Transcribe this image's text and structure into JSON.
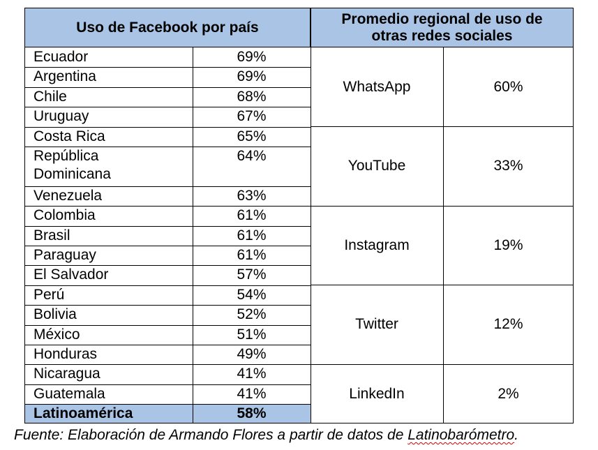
{
  "header": {
    "left": "Uso de Facebook por país",
    "right_line1": "Promedio regional de uso de",
    "right_line2": "otras redes sociales"
  },
  "countries": [
    {
      "name": "Ecuador",
      "pct": "69%"
    },
    {
      "name": "Argentina",
      "pct": "69%"
    },
    {
      "name": "Chile",
      "pct": "68%"
    },
    {
      "name": "Uruguay",
      "pct": "67%"
    },
    {
      "name": "Costa Rica",
      "pct": "65%"
    },
    {
      "name": "República",
      "name2": "Dominicana",
      "pct": "64%"
    },
    {
      "name": "Venezuela",
      "pct": "63%"
    },
    {
      "name": "Colombia",
      "pct": "61%"
    },
    {
      "name": "Brasil",
      "pct": "61%"
    },
    {
      "name": "Paraguay",
      "pct": "61%"
    },
    {
      "name": "El Salvador",
      "pct": "57%"
    },
    {
      "name": "Perú",
      "pct": "54%"
    },
    {
      "name": "Bolivia",
      "pct": "52%"
    },
    {
      "name": "México",
      "pct": "51%"
    },
    {
      "name": "Honduras",
      "pct": "49%"
    },
    {
      "name": "Nicaragua",
      "pct": "41%"
    },
    {
      "name": "Guatemala",
      "pct": "41%"
    }
  ],
  "total": {
    "name": "Latinoamérica",
    "pct": "58%"
  },
  "networks": [
    {
      "name": "WhatsApp",
      "pct": "60%"
    },
    {
      "name": "YouTube",
      "pct": "33%"
    },
    {
      "name": "Instagram",
      "pct": "19%"
    },
    {
      "name": "Twitter",
      "pct": "12%"
    },
    {
      "name": "LinkedIn",
      "pct": "2%"
    }
  ],
  "source": {
    "prefix": "Fuente: Elaboración de Armando Flores a partir de datos de ",
    "link": "Latinobarómetro",
    "suffix": "."
  },
  "colors": {
    "header_bg": "#a9c4e4"
  }
}
